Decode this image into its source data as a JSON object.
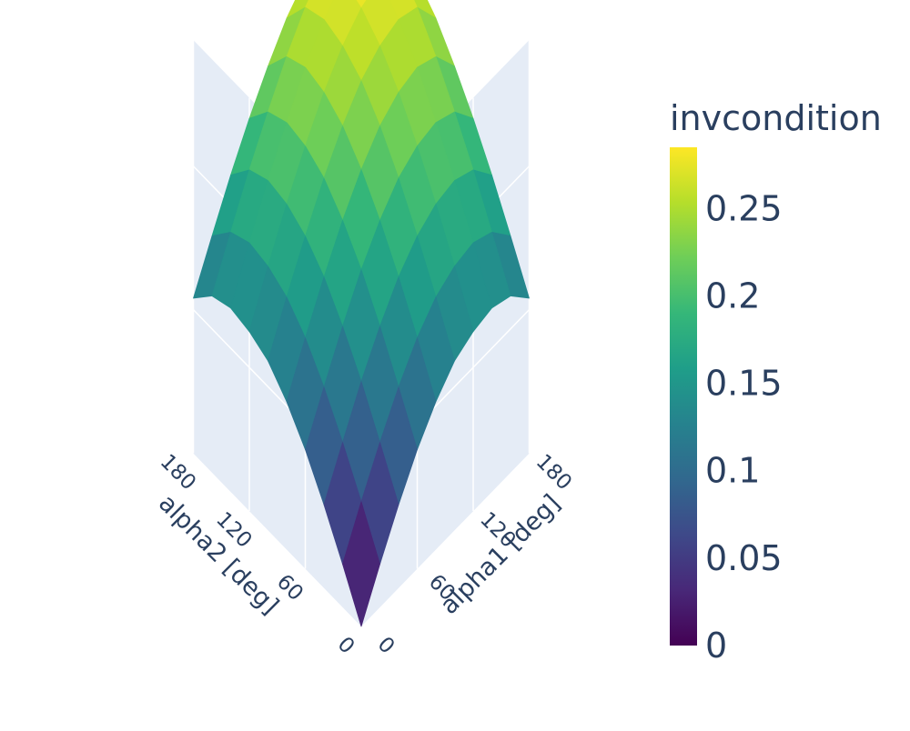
{
  "chart_data": {
    "type": "surface",
    "colorscale": "Viridis",
    "colorscale_stops": [
      "#440154",
      "#482878",
      "#3e4989",
      "#31688e",
      "#26828e",
      "#1f9e89",
      "#35b779",
      "#6ece58",
      "#b5de2b",
      "#fde725"
    ],
    "x_label": "alpha1 [deg]",
    "y_label": "alpha2 [deg]",
    "x_ticks": [
      "0",
      "60",
      "120",
      "180"
    ],
    "y_ticks": [
      "0",
      "60",
      "120",
      "180"
    ],
    "x_range": [
      0,
      180
    ],
    "y_range": [
      0,
      180
    ],
    "z_range": [
      0,
      0.285
    ],
    "colorbar": {
      "title": "invcondition",
      "range": [
        0,
        0.285
      ],
      "ticks": [
        "0",
        "0.05",
        "0.1",
        "0.15",
        "0.2",
        "0.25"
      ]
    },
    "grid_step_deg": 20,
    "z": [
      [
        0.0,
        0.03,
        0.058,
        0.083,
        0.103,
        0.118,
        0.125,
        0.128,
        0.123,
        0.108
      ],
      [
        0.03,
        0.06,
        0.088,
        0.113,
        0.134,
        0.149,
        0.157,
        0.16,
        0.154,
        0.138
      ],
      [
        0.058,
        0.088,
        0.117,
        0.142,
        0.163,
        0.178,
        0.187,
        0.19,
        0.184,
        0.167
      ],
      [
        0.083,
        0.113,
        0.142,
        0.168,
        0.189,
        0.205,
        0.214,
        0.217,
        0.211,
        0.193
      ],
      [
        0.103,
        0.134,
        0.163,
        0.189,
        0.211,
        0.228,
        0.238,
        0.242,
        0.236,
        0.216
      ],
      [
        0.118,
        0.149,
        0.178,
        0.205,
        0.228,
        0.246,
        0.257,
        0.262,
        0.257,
        0.236
      ],
      [
        0.125,
        0.157,
        0.187,
        0.214,
        0.238,
        0.257,
        0.27,
        0.276,
        0.272,
        0.25
      ],
      [
        0.128,
        0.16,
        0.19,
        0.217,
        0.242,
        0.262,
        0.276,
        0.284,
        0.281,
        0.258
      ],
      [
        0.123,
        0.154,
        0.184,
        0.211,
        0.236,
        0.257,
        0.272,
        0.281,
        0.279,
        0.255
      ],
      [
        0.108,
        0.138,
        0.167,
        0.193,
        0.216,
        0.236,
        0.25,
        0.258,
        0.255,
        0.232
      ]
    ]
  }
}
